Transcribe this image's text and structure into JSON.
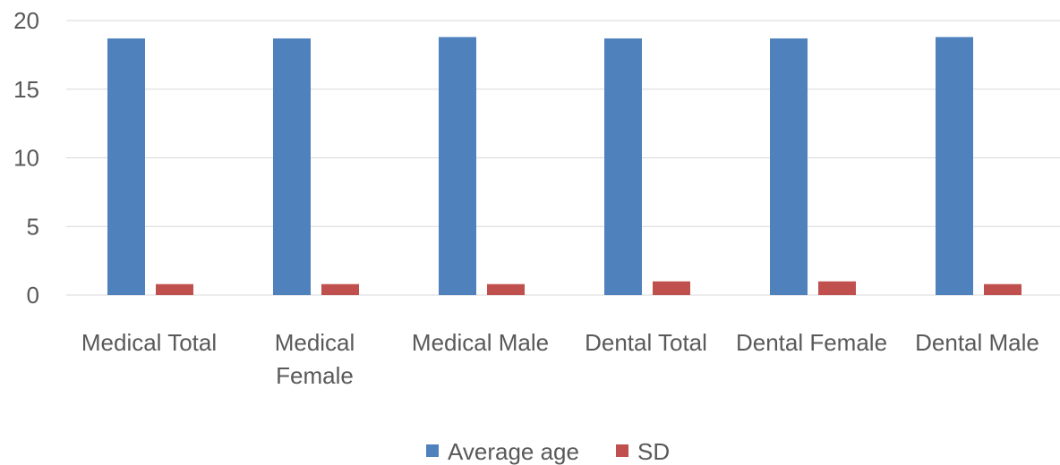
{
  "chart_data": {
    "type": "bar",
    "categories": [
      [
        "Medical Total"
      ],
      [
        "Medical",
        "Female"
      ],
      [
        "Medical Male"
      ],
      [
        "Dental Total"
      ],
      [
        "Dental Female"
      ],
      [
        "Dental Male"
      ]
    ],
    "series": [
      {
        "name": "Average age",
        "color": "#4f81bd",
        "values": [
          18.7,
          18.7,
          18.8,
          18.7,
          18.7,
          18.8
        ]
      },
      {
        "name": "SD",
        "color": "#c0504d",
        "values": [
          0.8,
          0.8,
          0.8,
          1.0,
          1.0,
          0.8
        ]
      }
    ],
    "yticks": [
      "0",
      "5",
      "10",
      "15",
      "20"
    ],
    "ylim": [
      0,
      20
    ],
    "grid": true,
    "legend_position": "bottom"
  }
}
